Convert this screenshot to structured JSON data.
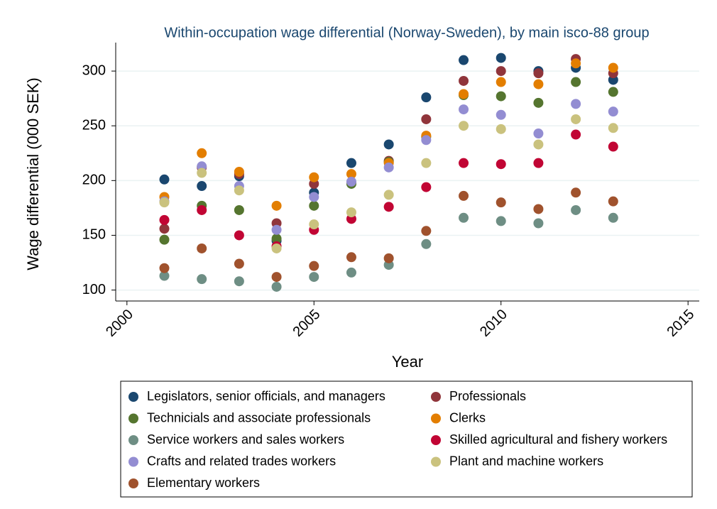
{
  "chart_data": {
    "type": "scatter",
    "title": "Within-occupation wage differential (Norway-Sweden), by main isco-88 group",
    "x_label": "Year",
    "y_label": "Wage differential (000 SEK)",
    "x": [
      2001,
      2002,
      2003,
      2004,
      2005,
      2006,
      2007,
      2008,
      2009,
      2010,
      2011,
      2012,
      2013
    ],
    "series": [
      {
        "name": "Legislators, senior officials, and managers",
        "color": "#1a476f",
        "values": [
          201,
          195,
          204,
          145,
          189,
          216,
          233,
          276,
          310,
          312,
          300,
          303,
          292
        ]
      },
      {
        "name": "Professionals",
        "color": "#90353b",
        "values": [
          156,
          212,
          206,
          161,
          197,
          198,
          218,
          256,
          291,
          300,
          298,
          311,
          298
        ]
      },
      {
        "name": "Technicials and associate professionals",
        "color": "#55752f",
        "values": [
          146,
          177,
          173,
          147,
          177,
          197,
          217,
          240,
          278,
          277,
          271,
          290,
          281
        ]
      },
      {
        "name": "Clerks",
        "color": "#e37e00",
        "values": [
          185,
          225,
          208,
          177,
          203,
          206,
          216,
          241,
          279,
          290,
          288,
          307,
          303
        ]
      },
      {
        "name": "Service workers and sales workers",
        "color": "#6e8e84",
        "values": [
          113,
          110,
          108,
          103,
          112,
          116,
          123,
          142,
          166,
          163,
          161,
          173,
          166
        ]
      },
      {
        "name": "Skilled agricultural and fishery workers",
        "color": "#c10534",
        "values": [
          164,
          173,
          150,
          140,
          155,
          165,
          176,
          194,
          216,
          215,
          216,
          242,
          231
        ]
      },
      {
        "name": "Crafts and related trades workers",
        "color": "#938dd2",
        "values": [
          181,
          213,
          195,
          155,
          185,
          199,
          212,
          237,
          265,
          260,
          243,
          270,
          263
        ]
      },
      {
        "name": "Plant and machine workers",
        "color": "#cac27e",
        "values": [
          180,
          207,
          191,
          138,
          160,
          171,
          187,
          216,
          250,
          247,
          233,
          256,
          248
        ]
      },
      {
        "name": "Elementary workers",
        "color": "#a0522d",
        "values": [
          120,
          138,
          124,
          112,
          122,
          130,
          129,
          154,
          186,
          180,
          174,
          189,
          181
        ]
      }
    ],
    "xlim": [
      1999.7,
      2015.3
    ],
    "xticks": [
      2000,
      2005,
      2010,
      2015
    ],
    "ylim": [
      90,
      326
    ],
    "yticks": [
      100,
      150,
      200,
      250,
      300
    ],
    "grid": true
  }
}
